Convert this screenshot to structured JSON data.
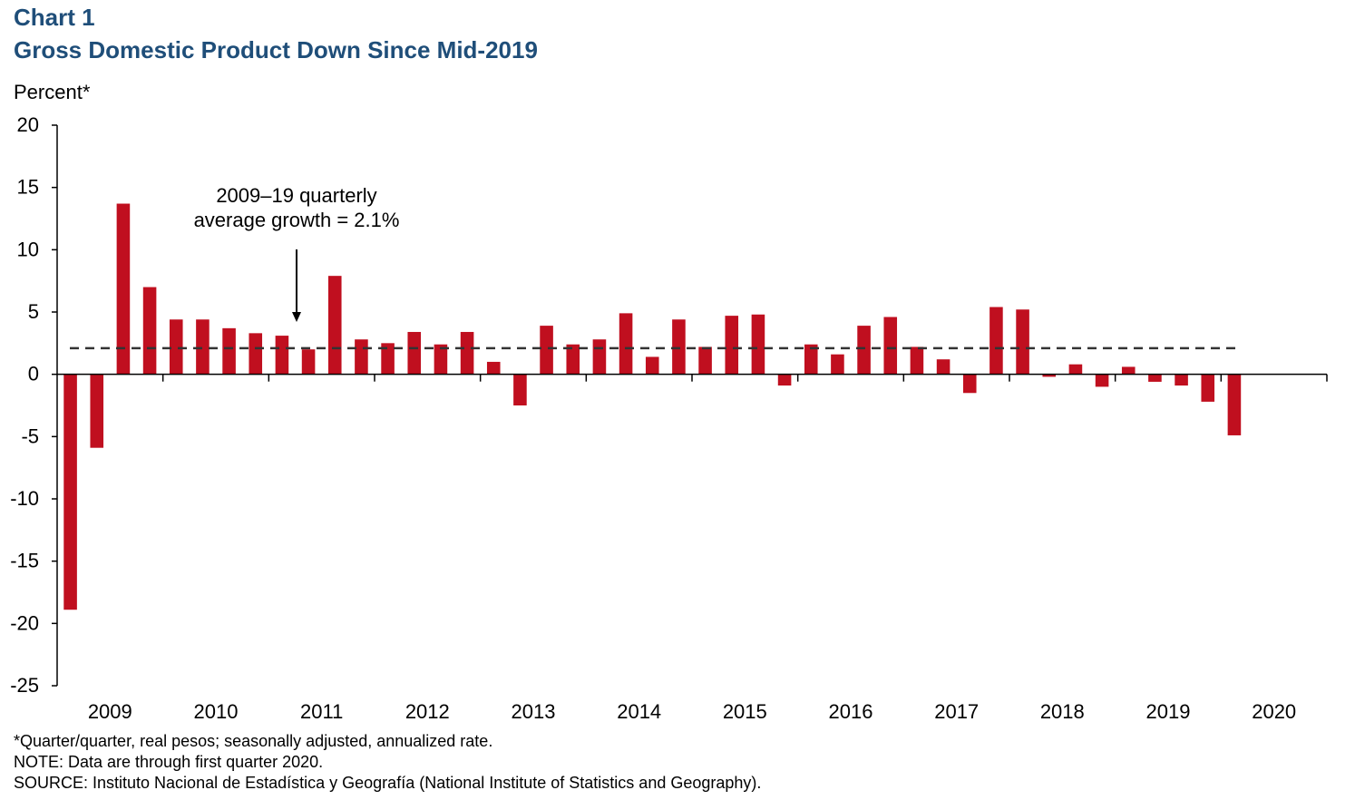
{
  "header": {
    "chart_number": "Chart 1",
    "title": "Gross Domestic Product Down Since Mid-2019"
  },
  "footnotes": {
    "unit_note": "*Quarter/quarter, real pesos; seasonally adjusted, annualized  rate.",
    "note": "NOTE: Data are through  first quarter 2020.",
    "source": "SOURCE:  Instituto Nacional  de Estadística y Geografía (National Institute of Statistics and Geography)."
  },
  "colors": {
    "title": "#1f4e79",
    "bars": "#c00f1f",
    "reference_line": "#333333",
    "axis": "#000000"
  },
  "chart_data": {
    "type": "bar",
    "ylabel": "Percent*",
    "ylim": [
      -25,
      20
    ],
    "yticks": [
      20,
      15,
      10,
      5,
      0,
      -5,
      -10,
      -15,
      -20,
      -25
    ],
    "year_labels": [
      "2009",
      "2010",
      "2011",
      "2012",
      "2013",
      "2014",
      "2015",
      "2016",
      "2017",
      "2018",
      "2019",
      "2020"
    ],
    "quarters_per_year": 4,
    "grid": false,
    "legend": "none",
    "series": [
      {
        "values": [
          -18.9,
          -5.9,
          13.7,
          7.0,
          4.4,
          4.4,
          3.7,
          3.3,
          3.1,
          2.0,
          7.9,
          2.8,
          2.5,
          3.4,
          2.4,
          3.4,
          1.0,
          -2.5,
          3.9,
          2.4,
          2.8,
          4.9,
          1.4,
          4.4,
          2.2,
          4.7,
          4.8,
          -0.9,
          2.4,
          1.6,
          3.9,
          4.6,
          2.2,
          1.2,
          -1.5,
          5.4,
          5.2,
          -0.2,
          0.8,
          -1.0,
          0.6,
          -0.6,
          -0.9,
          -2.2,
          -4.9
        ]
      }
    ],
    "reference_line": {
      "value": 2.1,
      "style": "dashed"
    },
    "annotation": {
      "lines": [
        "2009–19 quarterly",
        "average growth = 2.1%"
      ],
      "arrow": "down"
    }
  }
}
